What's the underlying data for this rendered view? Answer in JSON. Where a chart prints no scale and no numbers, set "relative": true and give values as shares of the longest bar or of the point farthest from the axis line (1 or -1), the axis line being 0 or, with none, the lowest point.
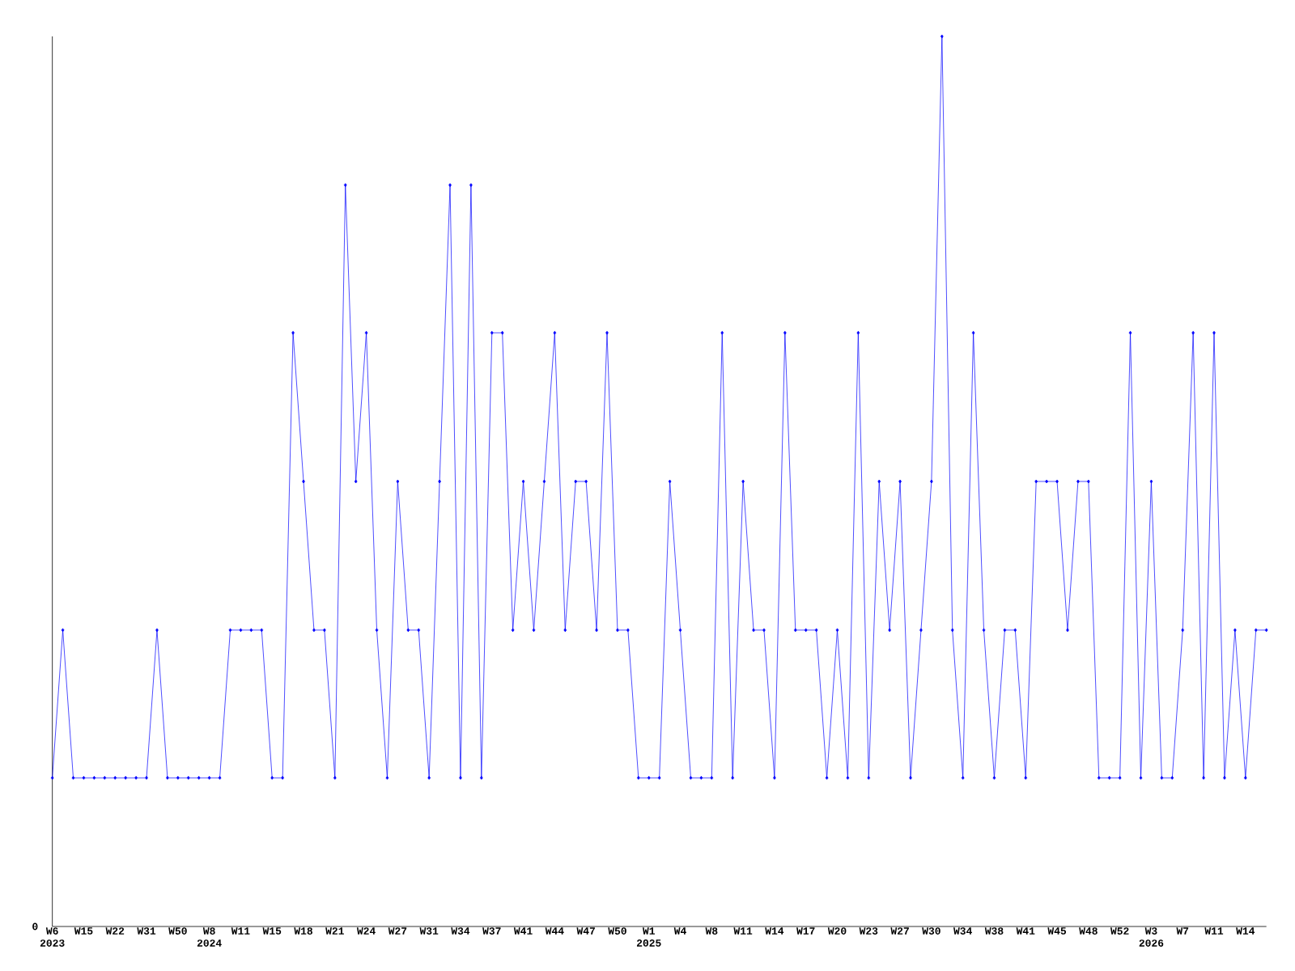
{
  "chart_data": {
    "type": "line",
    "relative": true,
    "color": "#0000ff",
    "marker": "diamond",
    "line_style": "solid",
    "grid": false,
    "annotations": [
      "0"
    ],
    "categories": [
      "W6 2023",
      null,
      null,
      "W15",
      null,
      null,
      "W22",
      null,
      null,
      "W31",
      null,
      null,
      "W50",
      null,
      null,
      "W8 2024",
      null,
      null,
      "W11",
      null,
      null,
      "W15",
      null,
      null,
      "W18",
      null,
      null,
      "W21",
      null,
      null,
      "W24",
      null,
      null,
      "W27",
      null,
      null,
      "W31",
      null,
      null,
      "W34",
      null,
      null,
      "W37",
      null,
      null,
      "W41",
      null,
      null,
      "W44",
      null,
      null,
      "W47",
      null,
      null,
      "W50",
      null,
      null,
      "W1 2025",
      null,
      null,
      "W4",
      null,
      null,
      "W8",
      null,
      null,
      "W11",
      null,
      null,
      "W14",
      null,
      null,
      "W17",
      null,
      null,
      "W20",
      null,
      null,
      "W23",
      null,
      null,
      "W27",
      null,
      null,
      "W30",
      null,
      null,
      "W34",
      null,
      null,
      "W38",
      null,
      null,
      "W41",
      null,
      null,
      "W45",
      null,
      null,
      "W48",
      null,
      null,
      "W52",
      null,
      null,
      "W3 2026",
      null,
      null,
      "W7",
      null,
      null,
      "W11",
      null,
      null,
      "W14",
      null,
      null
    ],
    "values": [
      0.167,
      0.333,
      0.167,
      0.167,
      0.167,
      0.167,
      0.167,
      0.167,
      0.167,
      0.167,
      0.333,
      0.167,
      0.167,
      0.167,
      0.167,
      0.167,
      0.167,
      0.333,
      0.333,
      0.333,
      0.333,
      0.167,
      0.167,
      0.667,
      0.5,
      0.333,
      0.333,
      0.167,
      0.833,
      0.5,
      0.667,
      0.333,
      0.167,
      0.5,
      0.333,
      0.333,
      0.167,
      0.5,
      0.833,
      0.167,
      0.833,
      0.167,
      0.667,
      0.667,
      0.333,
      0.5,
      0.333,
      0.5,
      0.667,
      0.333,
      0.5,
      0.5,
      0.333,
      0.667,
      0.333,
      0.333,
      0.167,
      0.167,
      0.167,
      0.5,
      0.333,
      0.167,
      0.167,
      0.167,
      0.667,
      0.167,
      0.5,
      0.333,
      0.333,
      0.167,
      0.667,
      0.333,
      0.333,
      0.333,
      0.167,
      0.333,
      0.167,
      0.667,
      0.167,
      0.5,
      0.333,
      0.5,
      0.167,
      0.333,
      0.5,
      1,
      0.333,
      0.167,
      0.667,
      0.333,
      0.167,
      0.333,
      0.333,
      0.167,
      0.5,
      0.5,
      0.5,
      0.333,
      0.5,
      0.5,
      0.167,
      0.167,
      0.167,
      0.667,
      0.167,
      0.5,
      0.167,
      0.167,
      0.333,
      0.667,
      0.167,
      0.667,
      0.167,
      0.333,
      0.167,
      0.333,
      0.333
    ]
  }
}
